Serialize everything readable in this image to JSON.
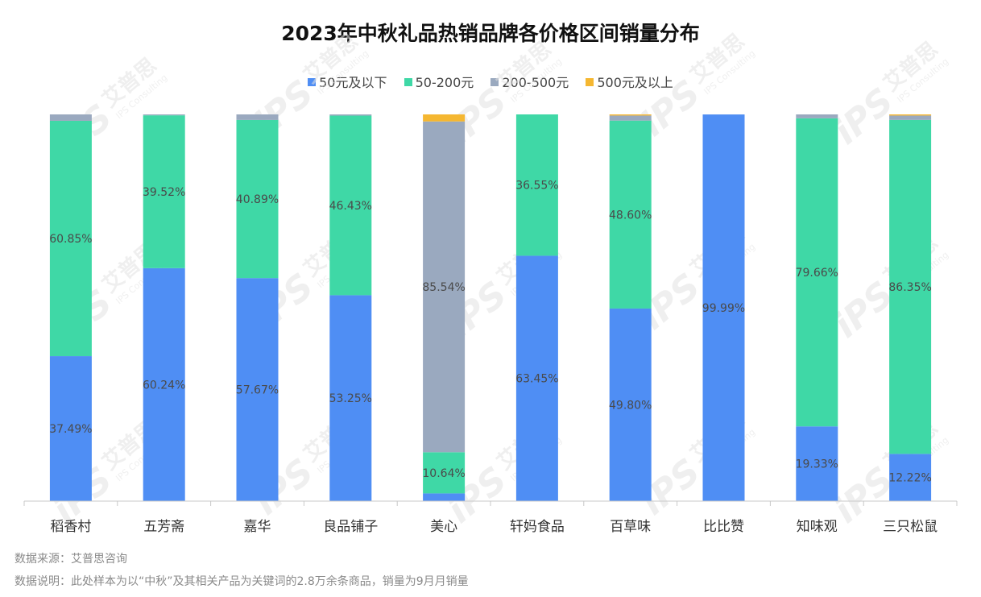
{
  "title": "2023年中秋礼品热销品牌各价格区间销量分布",
  "legend": [
    {
      "label": "50元及以下",
      "color": "#4f8ef4"
    },
    {
      "label": "50-200元",
      "color": "#3fd8a6"
    },
    {
      "label": "200-500元",
      "color": "#9aa9bf"
    },
    {
      "label": "500元及以上",
      "color": "#f5b731"
    }
  ],
  "chart_data": {
    "type": "bar",
    "stacked": true,
    "percent_stacked": true,
    "legend_position": "top",
    "grid": false,
    "title": "2023年中秋礼品热销品牌各价格区间销量分布",
    "categories": [
      "稻香村",
      "五芳斋",
      "嘉华",
      "良品铺子",
      "美心",
      "轩妈食品",
      "百草味",
      "比比赞",
      "知味观",
      "三只松鼠"
    ],
    "series": [
      {
        "name": "50元及以下",
        "color": "#4f8ef4",
        "values": [
          37.49,
          60.24,
          57.67,
          53.25,
          2.0,
          63.45,
          49.8,
          99.99,
          19.33,
          12.22
        ],
        "labels": [
          "37.49%",
          "60.24%",
          "57.67%",
          "53.25%",
          "",
          "63.45%",
          "49.80%",
          "99.99%",
          "19.33%",
          "12.22%"
        ]
      },
      {
        "name": "50-200元",
        "color": "#3fd8a6",
        "values": [
          60.85,
          39.52,
          40.89,
          46.43,
          10.64,
          36.55,
          48.6,
          0.0,
          79.66,
          86.35
        ],
        "labels": [
          "60.85%",
          "39.52%",
          "40.89%",
          "46.43%",
          "10.64%",
          "36.55%",
          "48.60%",
          "",
          "79.66%",
          "86.35%"
        ]
      },
      {
        "name": "200-500元",
        "color": "#9aa9bf",
        "values": [
          1.66,
          0.24,
          1.44,
          0.32,
          85.54,
          0.0,
          1.3,
          0.01,
          1.01,
          1.13
        ],
        "labels": [
          "",
          "",
          "",
          "",
          "85.54%",
          "",
          "",
          "",
          "",
          ""
        ]
      },
      {
        "name": "500元及以上",
        "color": "#f5b731",
        "values": [
          0.0,
          0.0,
          0.0,
          0.0,
          1.82,
          0.0,
          0.3,
          0.0,
          0.0,
          0.3
        ],
        "labels": [
          "",
          "",
          "",
          "",
          "",
          "",
          "",
          "",
          "",
          ""
        ]
      }
    ],
    "ylim": [
      0,
      100
    ]
  },
  "watermark": {
    "brand": "艾普思",
    "sub": "IPS Consulting",
    "logo": "iPS"
  },
  "footer": {
    "source": "数据来源：艾普思咨询",
    "note": "数据说明：此处样本为以“中秋”及其相关产品为关键词的2.8万余条商品，销量为9月月销量"
  }
}
